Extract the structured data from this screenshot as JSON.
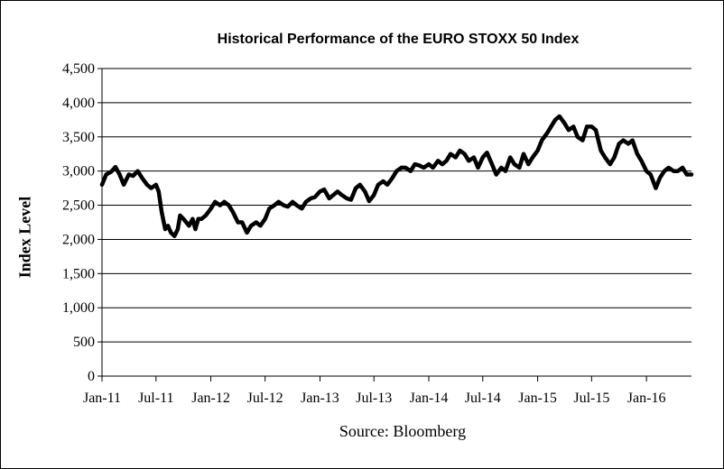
{
  "chart_data": {
    "type": "line",
    "title": "Historical Performance of the EURO STOXX 50 Index",
    "ylabel": "Index Level",
    "xlabel": "",
    "source": "Source: Bloomberg",
    "ylim": [
      0,
      4500
    ],
    "ytick_values": [
      0,
      500,
      1000,
      1500,
      2000,
      2500,
      3000,
      3500,
      4000,
      4500
    ],
    "ytick_labels": [
      "0",
      "500",
      "1,000",
      "1,500",
      "2,000",
      "2,500",
      "3,000",
      "3,500",
      "4,000",
      "4,500"
    ],
    "xlim": [
      "2011-01-01",
      "2016-05-31"
    ],
    "xtick_values": [
      "2011-01-01",
      "2011-07-01",
      "2012-01-01",
      "2012-07-01",
      "2013-01-01",
      "2013-07-01",
      "2014-01-01",
      "2014-07-01",
      "2015-01-01",
      "2015-07-01",
      "2016-01-01"
    ],
    "xtick_labels": [
      "Jan-11",
      "Jul-11",
      "Jan-12",
      "Jul-12",
      "Jan-13",
      "Jul-13",
      "Jan-14",
      "Jul-14",
      "Jan-15",
      "Jul-15",
      "Jan-16"
    ],
    "grid": "horizontal",
    "line_color": "#000000",
    "series": [
      {
        "x": [
          "2011-01-01",
          "2011-01-15",
          "2011-02-01",
          "2011-02-15",
          "2011-03-01",
          "2011-03-15",
          "2011-04-01",
          "2011-04-15",
          "2011-05-01",
          "2011-05-15",
          "2011-06-01",
          "2011-06-15",
          "2011-07-01",
          "2011-07-10",
          "2011-07-20",
          "2011-08-01",
          "2011-08-10",
          "2011-08-20",
          "2011-09-01",
          "2011-09-12",
          "2011-09-20",
          "2011-10-01",
          "2011-10-20",
          "2011-11-01",
          "2011-11-10",
          "2011-11-20",
          "2011-12-01",
          "2011-12-15",
          "2012-01-01",
          "2012-01-15",
          "2012-02-01",
          "2012-02-15",
          "2012-03-01",
          "2012-03-15",
          "2012-04-01",
          "2012-04-15",
          "2012-05-01",
          "2012-05-15",
          "2012-06-01",
          "2012-06-15",
          "2012-07-01",
          "2012-07-15",
          "2012-08-01",
          "2012-08-15",
          "2012-09-01",
          "2012-09-15",
          "2012-10-01",
          "2012-10-15",
          "2012-11-01",
          "2012-11-15",
          "2012-12-01",
          "2012-12-15",
          "2013-01-01",
          "2013-01-15",
          "2013-02-01",
          "2013-02-15",
          "2013-03-01",
          "2013-03-15",
          "2013-04-01",
          "2013-04-15",
          "2013-05-01",
          "2013-05-15",
          "2013-06-01",
          "2013-06-15",
          "2013-07-01",
          "2013-07-15",
          "2013-08-01",
          "2013-08-15",
          "2013-09-01",
          "2013-09-15",
          "2013-10-01",
          "2013-10-15",
          "2013-11-01",
          "2013-11-15",
          "2013-12-01",
          "2013-12-15",
          "2014-01-01",
          "2014-01-15",
          "2014-02-01",
          "2014-02-15",
          "2014-03-01",
          "2014-03-15",
          "2014-04-01",
          "2014-04-15",
          "2014-05-01",
          "2014-05-15",
          "2014-06-01",
          "2014-06-15",
          "2014-07-01",
          "2014-07-15",
          "2014-08-01",
          "2014-08-15",
          "2014-09-01",
          "2014-09-15",
          "2014-10-01",
          "2014-10-15",
          "2014-11-01",
          "2014-11-15",
          "2014-12-01",
          "2014-12-15",
          "2015-01-01",
          "2015-01-15",
          "2015-02-01",
          "2015-02-15",
          "2015-03-01",
          "2015-03-15",
          "2015-04-01",
          "2015-04-15",
          "2015-05-01",
          "2015-05-15",
          "2015-06-01",
          "2015-06-15",
          "2015-07-01",
          "2015-07-15",
          "2015-08-01",
          "2015-08-15",
          "2015-09-01",
          "2015-09-15",
          "2015-10-01",
          "2015-10-15",
          "2015-11-01",
          "2015-11-15",
          "2015-12-01",
          "2015-12-15",
          "2016-01-01",
          "2016-01-15",
          "2016-02-01",
          "2016-02-15",
          "2016-03-01",
          "2016-03-15",
          "2016-04-01",
          "2016-04-15",
          "2016-05-01",
          "2016-05-15",
          "2016-05-31"
        ],
        "y": [
          2800,
          2950,
          2990,
          3060,
          2950,
          2800,
          2950,
          2930,
          3000,
          2900,
          2800,
          2750,
          2800,
          2700,
          2400,
          2150,
          2200,
          2100,
          2050,
          2150,
          2350,
          2300,
          2200,
          2300,
          2150,
          2300,
          2300,
          2350,
          2450,
          2550,
          2500,
          2550,
          2500,
          2400,
          2250,
          2250,
          2100,
          2200,
          2250,
          2200,
          2300,
          2450,
          2500,
          2550,
          2500,
          2480,
          2550,
          2500,
          2450,
          2550,
          2600,
          2620,
          2700,
          2730,
          2600,
          2650,
          2700,
          2650,
          2600,
          2580,
          2750,
          2800,
          2700,
          2560,
          2650,
          2800,
          2850,
          2800,
          2900,
          3000,
          3050,
          3050,
          3000,
          3100,
          3080,
          3050,
          3100,
          3050,
          3150,
          3100,
          3150,
          3250,
          3200,
          3300,
          3250,
          3150,
          3200,
          3050,
          3200,
          3270,
          3100,
          2950,
          3050,
          3000,
          3200,
          3100,
          3050,
          3250,
          3100,
          3200,
          3300,
          3450,
          3550,
          3650,
          3750,
          3800,
          3700,
          3600,
          3650,
          3500,
          3450,
          3650,
          3650,
          3600,
          3300,
          3200,
          3100,
          3200,
          3400,
          3450,
          3400,
          3450,
          3250,
          3150,
          3000,
          2950,
          2750,
          2900,
          3000,
          3050,
          3000,
          3000,
          3050,
          2950,
          2950
        ]
      }
    ]
  }
}
